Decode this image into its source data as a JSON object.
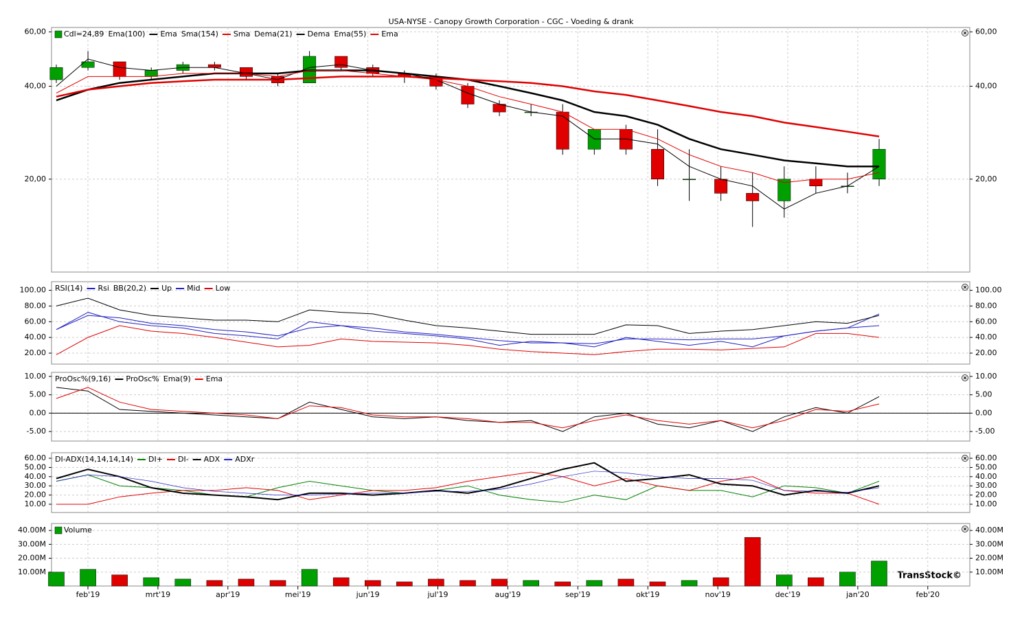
{
  "title": "USA-NYSE - Canopy Growth Corporation - CGC - Voeding & drank",
  "watermark": "TransStock©",
  "x_axis": {
    "labels": [
      "feb'19",
      "mrt'19",
      "apr'19",
      "mei'19",
      "jun'19",
      "jul'19",
      "aug'19",
      "sep'19",
      "okt'19",
      "nov'19",
      "dec'19",
      "jan'20",
      "feb'20"
    ]
  },
  "chart_data": [
    {
      "type": "candlestick",
      "name": "Cdl=24,89",
      "up_color": "#00a000",
      "down_color": "#e00000",
      "log": true,
      "grid": true,
      "ylim": [
        10,
        62
      ],
      "yticks": [
        {
          "value": 60,
          "label": "60,00"
        },
        {
          "value": 40,
          "label": "40,00"
        },
        {
          "value": 20,
          "label": "20,00"
        }
      ],
      "open": [
        42,
        46,
        48,
        43,
        45,
        47,
        46,
        43,
        41,
        50,
        46,
        44,
        43,
        40,
        35,
        33,
        33,
        25,
        29,
        25,
        20,
        20,
        18,
        17,
        20,
        19,
        20
      ],
      "high": [
        47,
        52,
        48,
        46,
        48,
        48,
        46,
        44,
        52,
        50,
        47,
        45,
        44,
        41,
        36,
        35,
        35,
        29,
        30,
        29,
        25,
        22,
        21,
        22,
        22,
        21,
        27
      ],
      "low": [
        41,
        45,
        42,
        42,
        44,
        45,
        42,
        40,
        41,
        45,
        43,
        41,
        39,
        34,
        32,
        32,
        24,
        24,
        24,
        19,
        17,
        17,
        14,
        15,
        18,
        18,
        19
      ],
      "close": [
        46,
        48,
        43,
        45,
        47,
        46,
        43,
        41,
        50,
        46,
        44,
        43,
        40,
        35,
        33,
        33,
        25,
        29,
        25,
        20,
        20,
        18,
        17,
        20,
        19,
        19,
        25
      ],
      "series": [
        {
          "name": "Ema(100)",
          "short": "Ema",
          "color": "#000000",
          "width": 2.5,
          "values": [
            36,
            39,
            41,
            42,
            43,
            44,
            44,
            44,
            45,
            45,
            45,
            44,
            43,
            42,
            40,
            38,
            36,
            33,
            32,
            30,
            27,
            25,
            24,
            23,
            22.5,
            22,
            22
          ]
        },
        {
          "name": "Sma(154)",
          "short": "Sma",
          "color": "#e00000",
          "width": 2.5,
          "values": [
            37,
            39,
            40,
            41,
            41.5,
            42,
            42,
            42,
            42.5,
            43,
            43,
            43,
            42.5,
            42,
            41.5,
            41,
            40,
            38.5,
            37.5,
            36,
            34.5,
            33,
            32,
            30.5,
            29.5,
            28.5,
            27.5
          ]
        },
        {
          "name": "Dema(21)",
          "short": "Dema",
          "color": "#000000",
          "width": 1,
          "values": [
            40,
            49,
            46,
            45,
            46,
            46,
            44,
            42,
            46,
            47,
            45,
            44,
            42,
            38,
            35,
            33,
            32,
            27,
            27,
            26,
            22,
            20,
            19,
            16,
            18,
            19,
            22
          ]
        },
        {
          "name": "Ema(55)",
          "short": "Ema",
          "color": "#e00000",
          "width": 1,
          "values": [
            38,
            43,
            43,
            43,
            44,
            44,
            44,
            43,
            45,
            45,
            44,
            43,
            42,
            40,
            37,
            35,
            33,
            29,
            29,
            27,
            24,
            22,
            21,
            19.5,
            20,
            20,
            21
          ]
        }
      ]
    },
    {
      "type": "line",
      "grid": true,
      "ylim": [
        6,
        111
      ],
      "yticks": [
        {
          "value": 100,
          "label": "100.00"
        },
        {
          "value": 80,
          "label": "80.00"
        },
        {
          "value": 60,
          "label": "60.00"
        },
        {
          "value": 40,
          "label": "40.00"
        },
        {
          "value": 20,
          "label": "20.00"
        }
      ],
      "series": [
        {
          "name": "RSI(14)",
          "short": "Rsi",
          "color": "#2020c0",
          "width": 1,
          "values": [
            50,
            72,
            60,
            55,
            52,
            45,
            42,
            38,
            60,
            55,
            48,
            45,
            42,
            38,
            30,
            35,
            33,
            28,
            40,
            35,
            30,
            35,
            28,
            42,
            48,
            52,
            70
          ]
        },
        {
          "name": "BB(20,2)",
          "short": "Up",
          "color": "#000000",
          "width": 1,
          "values": [
            80,
            90,
            75,
            68,
            65,
            62,
            62,
            60,
            75,
            72,
            70,
            62,
            55,
            52,
            48,
            44,
            44,
            44,
            56,
            55,
            45,
            48,
            50,
            55,
            60,
            58,
            68
          ]
        },
        {
          "short": "Mid",
          "color": "#2020c0",
          "width": 1,
          "values": [
            50,
            68,
            65,
            58,
            55,
            50,
            47,
            42,
            52,
            55,
            52,
            47,
            44,
            40,
            36,
            33,
            33,
            32,
            38,
            38,
            37,
            38,
            38,
            42,
            48,
            52,
            55
          ]
        },
        {
          "short": "Low",
          "color": "#e00000",
          "width": 1,
          "values": [
            18,
            40,
            55,
            48,
            45,
            40,
            34,
            28,
            30,
            38,
            35,
            34,
            33,
            30,
            25,
            22,
            20,
            18,
            22,
            25,
            25,
            24,
            26,
            28,
            45,
            45,
            40
          ]
        }
      ]
    },
    {
      "type": "line",
      "grid": true,
      "zero_line": true,
      "ylim": [
        -7.6,
        11.1
      ],
      "yticks": [
        {
          "value": 10,
          "label": "10.00"
        },
        {
          "value": 5,
          "label": "5.00"
        },
        {
          "value": 0,
          "label": "0.00"
        },
        {
          "value": -5,
          "label": "-5.00"
        }
      ],
      "series": [
        {
          "name": "ProOsc%(9,16)",
          "short": "ProOsc%",
          "color": "#000000",
          "width": 1,
          "values": [
            7,
            6,
            1,
            0.5,
            0,
            -0.5,
            -1,
            -1.5,
            3,
            1,
            -1,
            -1.5,
            -1,
            -2,
            -2.5,
            -2,
            -5,
            -1,
            0,
            -3,
            -4,
            -2,
            -5,
            -1,
            1.5,
            0,
            4.5
          ]
        },
        {
          "name": "Ema(9)",
          "short": "Ema",
          "color": "#e00000",
          "width": 1,
          "values": [
            4,
            7,
            3,
            1,
            0.5,
            0,
            -0.5,
            -1.5,
            2,
            1.5,
            -0.5,
            -1,
            -1,
            -1.5,
            -2.5,
            -2.5,
            -4,
            -2,
            -0.5,
            -2,
            -3,
            -2,
            -4,
            -2,
            1,
            0.5,
            2.5
          ]
        }
      ]
    },
    {
      "type": "line",
      "grid": true,
      "ylim": [
        1,
        66
      ],
      "yticks": [
        {
          "value": 60,
          "label": "60.00"
        },
        {
          "value": 50,
          "label": "50.00"
        },
        {
          "value": 40,
          "label": "40.00"
        },
        {
          "value": 30,
          "label": "30.00"
        },
        {
          "value": 20,
          "label": "20.00"
        },
        {
          "value": 10,
          "label": "10.00"
        }
      ],
      "series": [
        {
          "name": "DI-ADX(14,14,14,14)",
          "short": "DI+",
          "color": "#008000",
          "width": 1,
          "values": [
            35,
            42,
            30,
            28,
            25,
            20,
            18,
            28,
            35,
            30,
            25,
            22,
            25,
            30,
            20,
            15,
            12,
            20,
            15,
            30,
            25,
            25,
            18,
            30,
            28,
            22,
            35
          ]
        },
        {
          "short": "DI-",
          "color": "#e00000",
          "width": 1,
          "values": [
            10,
            10,
            18,
            22,
            25,
            25,
            28,
            25,
            15,
            20,
            25,
            25,
            28,
            35,
            40,
            45,
            40,
            30,
            38,
            30,
            25,
            35,
            40,
            25,
            22,
            22,
            10
          ]
        },
        {
          "short": "ADX",
          "color": "#000000",
          "width": 2,
          "values": [
            38,
            48,
            40,
            28,
            22,
            20,
            18,
            15,
            22,
            22,
            20,
            22,
            25,
            22,
            28,
            38,
            48,
            55,
            35,
            38,
            42,
            32,
            30,
            20,
            25,
            22,
            30
          ]
        },
        {
          "short": "ADXr",
          "color": "#2020c0",
          "width": 0.7,
          "values": [
            35,
            42,
            40,
            35,
            28,
            24,
            22,
            20,
            20,
            21,
            22,
            22,
            24,
            24,
            26,
            32,
            40,
            46,
            44,
            40,
            38,
            38,
            36,
            25,
            24,
            23,
            28
          ]
        }
      ]
    },
    {
      "type": "bar",
      "name": "Volume",
      "grid": true,
      "up_color": "#00a000",
      "down_color": "#e00000",
      "ylim": [
        0,
        45
      ],
      "yticks": [
        {
          "value": 40,
          "label": "40.00M"
        },
        {
          "value": 30,
          "label": "30.00M"
        },
        {
          "value": 20,
          "label": "20.00M"
        },
        {
          "value": 10,
          "label": "10.00M"
        }
      ],
      "values": [
        10,
        12,
        8,
        6,
        5,
        4,
        5,
        4,
        12,
        6,
        4,
        3,
        5,
        4,
        5,
        4,
        3,
        4,
        5,
        3,
        4,
        6,
        35,
        8,
        6,
        10,
        18
      ]
    }
  ]
}
